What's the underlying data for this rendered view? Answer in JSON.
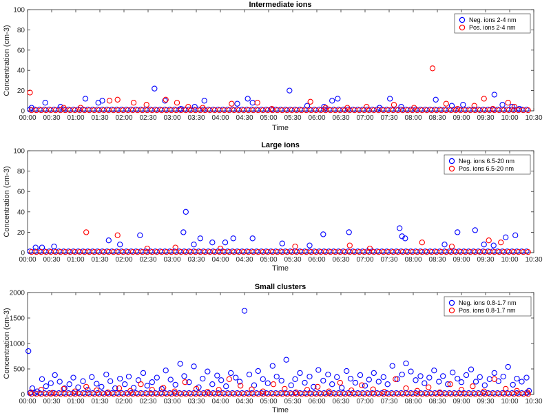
{
  "figure": {
    "colors": {
      "neg": "#0000ff",
      "pos": "#ff0000",
      "axis": "#262626"
    }
  },
  "chart_data": [
    {
      "type": "scatter",
      "title": "Intermediate ions",
      "xlabel": "Time",
      "ylabel": "Concentration (cm-3)",
      "ylim": [
        0,
        100
      ],
      "yticks": [
        "0",
        "20",
        "40",
        "60",
        "80",
        "100"
      ],
      "xlim": [
        "00:00",
        "10:30"
      ],
      "xticks": [
        "00:00",
        "00:30",
        "01:00",
        "01:30",
        "02:00",
        "02:30",
        "03:00",
        "03:30",
        "04:00",
        "04:30",
        "05:00",
        "05:30",
        "06:00",
        "06:30",
        "07:00",
        "07:30",
        "08:00",
        "08:30",
        "09:00",
        "09:30",
        "10:00",
        "10:30"
      ],
      "legend_position": "top-right",
      "series": [
        {
          "name": "Neg. ions 2-4 nm",
          "color": "#0000ff",
          "x": [
            "00:05",
            "00:22",
            "00:41",
            "01:12",
            "01:28",
            "01:33",
            "02:38",
            "02:51",
            "03:11",
            "03:28",
            "03:40",
            "04:21",
            "04:34",
            "04:40",
            "05:26",
            "05:48",
            "06:09",
            "06:19",
            "06:26",
            "07:18",
            "07:31",
            "07:45",
            "08:28",
            "08:48",
            "09:02",
            "09:41",
            "09:51",
            "10:03",
            "10:12"
          ],
          "y": [
            3,
            8,
            4,
            12,
            8,
            10,
            22,
            10,
            2,
            4,
            10,
            7,
            12,
            8,
            20,
            5,
            4,
            10,
            12,
            3,
            12,
            4,
            11,
            5,
            6,
            16,
            6,
            4,
            2
          ]
        },
        {
          "name": "Pos. ions 2-4 nm",
          "color": "#ff0000",
          "x": [
            "00:03",
            "00:45",
            "01:06",
            "01:42",
            "01:52",
            "02:12",
            "02:28",
            "02:52",
            "03:06",
            "03:20",
            "03:38",
            "04:14",
            "04:46",
            "05:04",
            "05:52",
            "06:11",
            "06:38",
            "07:02",
            "07:36",
            "08:01",
            "08:24",
            "08:41",
            "08:55",
            "09:16",
            "09:28",
            "09:39",
            "09:58",
            "10:06"
          ],
          "y": [
            18,
            3,
            3,
            10,
            11,
            8,
            6,
            11,
            8,
            4,
            3,
            7,
            8,
            2,
            9,
            3,
            3,
            4,
            6,
            3,
            42,
            7,
            2,
            5,
            12,
            2,
            8,
            4
          ]
        }
      ]
    },
    {
      "type": "scatter",
      "title": "Large ions",
      "xlabel": "Time",
      "ylabel": "Concentration (cm-3)",
      "ylim": [
        0,
        100
      ],
      "yticks": [
        "0",
        "20",
        "40",
        "60",
        "80",
        "100"
      ],
      "xlim": [
        "00:00",
        "10:30"
      ],
      "xticks": [
        "00:00",
        "00:30",
        "01:00",
        "01:30",
        "02:00",
        "02:30",
        "03:00",
        "03:30",
        "04:00",
        "04:30",
        "05:00",
        "05:30",
        "06:00",
        "06:30",
        "07:00",
        "07:30",
        "08:00",
        "08:30",
        "09:00",
        "09:30",
        "10:00",
        "10:30"
      ],
      "legend_position": "top-right",
      "series": [
        {
          "name": "Neg. ions 6.5-20 nm",
          "color": "#0000ff",
          "x": [
            "00:10",
            "00:18",
            "00:33",
            "01:41",
            "01:55",
            "02:20",
            "03:14",
            "03:17",
            "03:27",
            "03:35",
            "03:50",
            "04:06",
            "04:16",
            "04:40",
            "05:17",
            "05:51",
            "06:08",
            "06:40",
            "07:43",
            "07:46",
            "07:50",
            "08:39",
            "08:55",
            "09:17",
            "09:28",
            "09:40",
            "09:55",
            "10:07"
          ],
          "y": [
            5,
            5,
            6,
            12,
            8,
            17,
            20,
            40,
            8,
            14,
            10,
            10,
            14,
            14,
            9,
            7,
            18,
            20,
            24,
            16,
            14,
            8,
            20,
            22,
            8,
            7,
            15,
            17
          ]
        },
        {
          "name": "Pos. ions 6.5-20 nm",
          "color": "#ff0000",
          "x": [
            "01:13",
            "01:52",
            "02:29",
            "03:04",
            "04:00",
            "05:33",
            "06:41",
            "07:06",
            "08:11",
            "08:48",
            "09:34",
            "09:49"
          ],
          "y": [
            20,
            17,
            4,
            5,
            4,
            6,
            7,
            4,
            10,
            6,
            12,
            10
          ]
        }
      ]
    },
    {
      "type": "scatter",
      "title": "Small clusters",
      "xlabel": "Time",
      "ylabel": "Concentration (cm-3)",
      "ylim": [
        0,
        2000
      ],
      "yticks": [
        "0",
        "500",
        "1000",
        "1500",
        "2000"
      ],
      "xlim": [
        "00:00",
        "10:30"
      ],
      "xticks": [
        "00:00",
        "00:30",
        "01:00",
        "01:30",
        "02:00",
        "02:30",
        "03:00",
        "03:30",
        "04:00",
        "04:30",
        "05:00",
        "05:30",
        "06:00",
        "06:30",
        "07:00",
        "07:30",
        "08:00",
        "08:30",
        "09:00",
        "09:30",
        "10:00",
        "10:30"
      ],
      "legend_position": "top-right",
      "series": [
        {
          "name": "Neg. ions 0.8-1.7 nm",
          "color": "#0000ff",
          "x": [
            "00:01",
            "00:06",
            "00:12",
            "00:18",
            "00:23",
            "00:29",
            "00:34",
            "00:40",
            "00:46",
            "00:52",
            "00:57",
            "01:03",
            "01:09",
            "01:15",
            "01:20",
            "01:26",
            "01:32",
            "01:38",
            "01:43",
            "01:49",
            "01:55",
            "02:01",
            "02:06",
            "02:12",
            "02:18",
            "02:24",
            "02:29",
            "02:35",
            "02:41",
            "02:47",
            "02:52",
            "02:58",
            "03:04",
            "03:10",
            "03:15",
            "03:21",
            "03:27",
            "03:33",
            "03:38",
            "03:44",
            "03:50",
            "03:56",
            "04:01",
            "04:07",
            "04:13",
            "04:19",
            "04:24",
            "04:30",
            "04:36",
            "04:42",
            "04:47",
            "04:53",
            "04:59",
            "05:05",
            "05:10",
            "05:16",
            "05:22",
            "05:28",
            "05:33",
            "05:39",
            "05:45",
            "05:51",
            "05:56",
            "06:02",
            "06:08",
            "06:14",
            "06:19",
            "06:25",
            "06:31",
            "06:37",
            "06:42",
            "06:48",
            "06:54",
            "07:00",
            "07:05",
            "07:11",
            "07:17",
            "07:23",
            "07:28",
            "07:34",
            "07:40",
            "07:46",
            "07:51",
            "07:57",
            "08:03",
            "08:09",
            "08:14",
            "08:20",
            "08:26",
            "08:32",
            "08:37",
            "08:43",
            "08:49",
            "08:55",
            "09:00",
            "09:06",
            "09:12",
            "09:18",
            "09:23",
            "09:29",
            "09:35",
            "09:41",
            "09:46",
            "09:52",
            "09:58",
            "10:04",
            "10:09",
            "10:15",
            "10:21",
            "10:24"
          ],
          "y": [
            850,
            120,
            60,
            300,
            160,
            220,
            380,
            250,
            120,
            200,
            330,
            140,
            260,
            90,
            340,
            210,
            150,
            390,
            260,
            120,
            310,
            200,
            350,
            130,
            280,
            420,
            170,
            240,
            330,
            110,
            470,
            290,
            190,
            600,
            360,
            240,
            550,
            140,
            310,
            450,
            200,
            370,
            280,
            160,
            420,
            330,
            250,
            1640,
            390,
            180,
            460,
            300,
            220,
            560,
            350,
            270,
            680,
            180,
            300,
            420,
            230,
            350,
            150,
            480,
            270,
            390,
            200,
            340,
            130,
            460,
            310,
            230,
            380,
            170,
            290,
            420,
            250,
            340,
            200,
            560,
            300,
            390,
            610,
            450,
            280,
            360,
            220,
            330,
            470,
            250,
            360,
            200,
            430,
            310,
            240,
            380,
            490,
            250,
            340,
            180,
            300,
            420,
            260,
            350,
            540,
            190,
            310,
            250,
            330,
            70
          ]
        },
        {
          "name": "Pos. ions 0.8-1.7 nm",
          "color": "#ff0000",
          "x": [
            "00:04",
            "00:17",
            "00:31",
            "00:45",
            "00:59",
            "01:13",
            "01:26",
            "01:40",
            "01:54",
            "02:08",
            "02:21",
            "02:35",
            "02:49",
            "03:03",
            "03:16",
            "03:30",
            "03:44",
            "03:58",
            "04:11",
            "04:25",
            "04:39",
            "04:53",
            "05:06",
            "05:20",
            "05:34",
            "05:48",
            "06:01",
            "06:15",
            "06:29",
            "06:43",
            "06:56",
            "07:10",
            "07:24",
            "07:38",
            "07:51",
            "08:05",
            "08:19",
            "08:33",
            "08:46",
            "09:00",
            "09:14",
            "09:28",
            "09:41",
            "09:55",
            "10:09",
            "10:22"
          ],
          "y": [
            40,
            90,
            30,
            110,
            60,
            150,
            80,
            40,
            120,
            70,
            200,
            90,
            130,
            60,
            240,
            110,
            50,
            90,
            300,
            170,
            100,
            60,
            200,
            110,
            40,
            90,
            150,
            60,
            230,
            80,
            180,
            100,
            50,
            300,
            120,
            70,
            140,
            40,
            200,
            90,
            160,
            60,
            300,
            110,
            70,
            40
          ]
        }
      ]
    }
  ]
}
